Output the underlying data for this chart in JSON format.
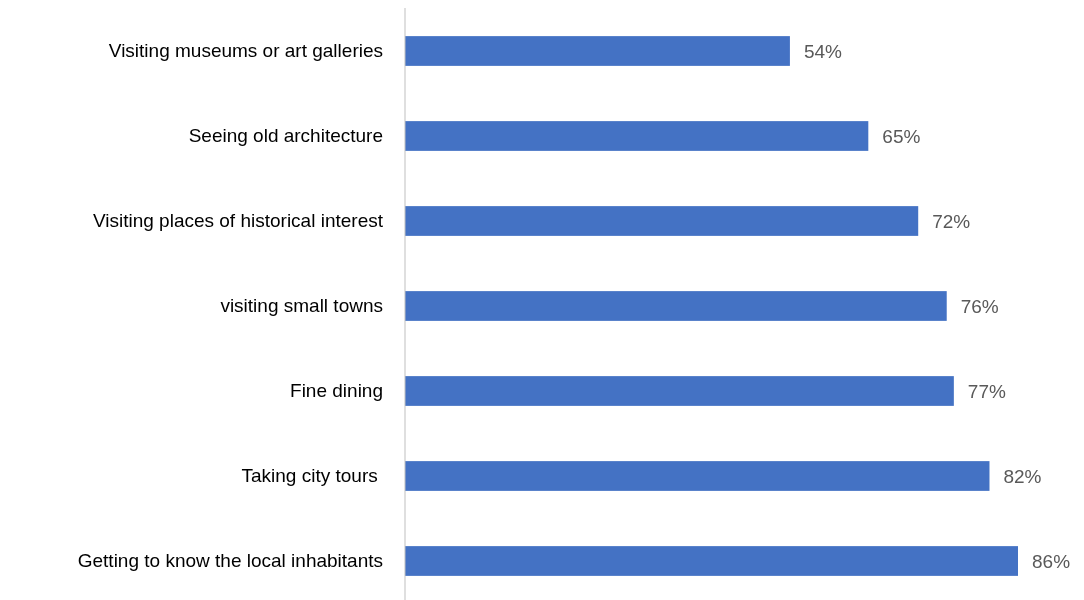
{
  "chart_data": {
    "type": "bar",
    "orientation": "horizontal",
    "relative": false,
    "categories": [
      "Visiting museums or art galleries",
      "Seeing old architecture",
      "Visiting places of historical interest",
      "visiting small towns",
      "Fine dining",
      "Taking city tours ",
      "Getting to know the local inhabitants"
    ],
    "values": [
      54,
      65,
      72,
      76,
      77,
      82,
      86
    ],
    "value_labels": [
      "54%",
      "65%",
      "72%",
      "76%",
      "77%",
      "82%",
      "86%"
    ],
    "color": "#4472c4"
  }
}
